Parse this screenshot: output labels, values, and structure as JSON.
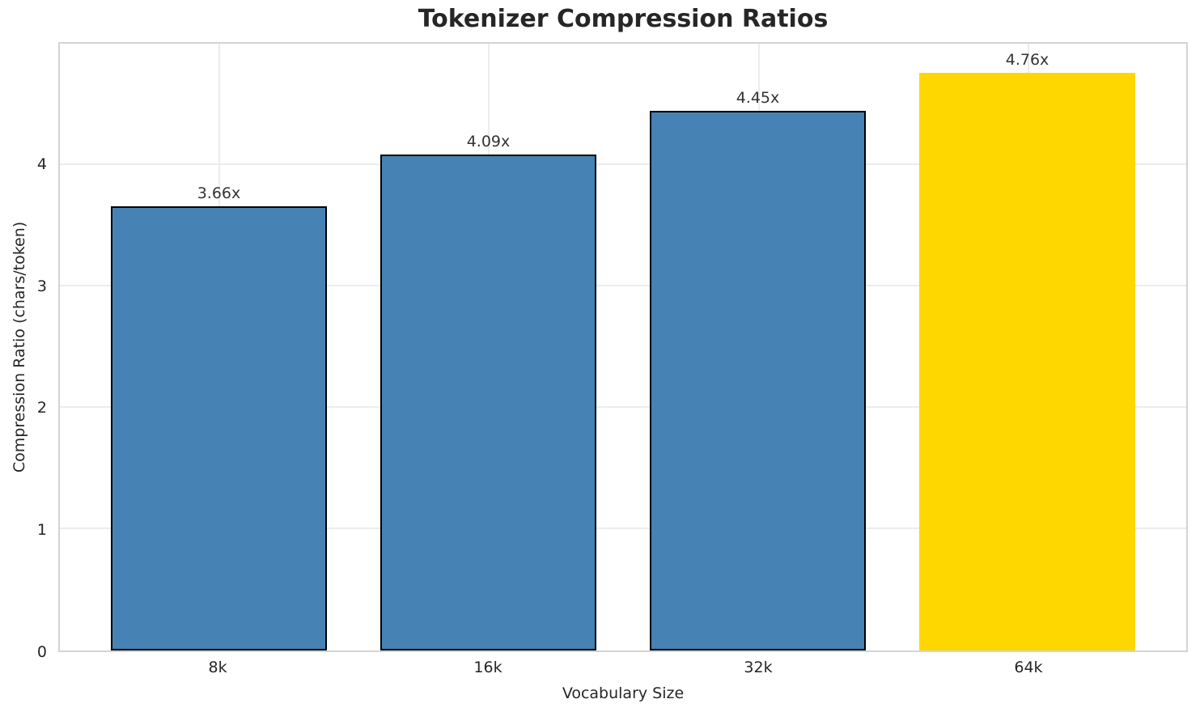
{
  "chart_data": {
    "type": "bar",
    "title": "Tokenizer Compression Ratios",
    "xlabel": "Vocabulary Size",
    "ylabel": "Compression Ratio (chars/token)",
    "categories": [
      "8k",
      "16k",
      "32k",
      "64k"
    ],
    "values": [
      3.66,
      4.09,
      4.45,
      4.76
    ],
    "bar_labels": [
      "3.66x",
      "4.09x",
      "4.45x",
      "4.76x"
    ],
    "bar_colors": [
      "#4682B4",
      "#4682B4",
      "#4682B4",
      "#FFD700"
    ],
    "bar_edge_colors": [
      "#000000",
      "#000000",
      "#000000",
      "none"
    ],
    "bar_width": 0.8,
    "xlim": [
      -0.59,
      3.59
    ],
    "ylim": [
      0,
      5
    ],
    "yticks": [
      0,
      1,
      2,
      3,
      4
    ],
    "grid": true,
    "legend": "none",
    "grid_color": "#ececec",
    "spine_color": "#d4d4d4",
    "text_color": "#262626",
    "background_color": "#ffffff"
  }
}
